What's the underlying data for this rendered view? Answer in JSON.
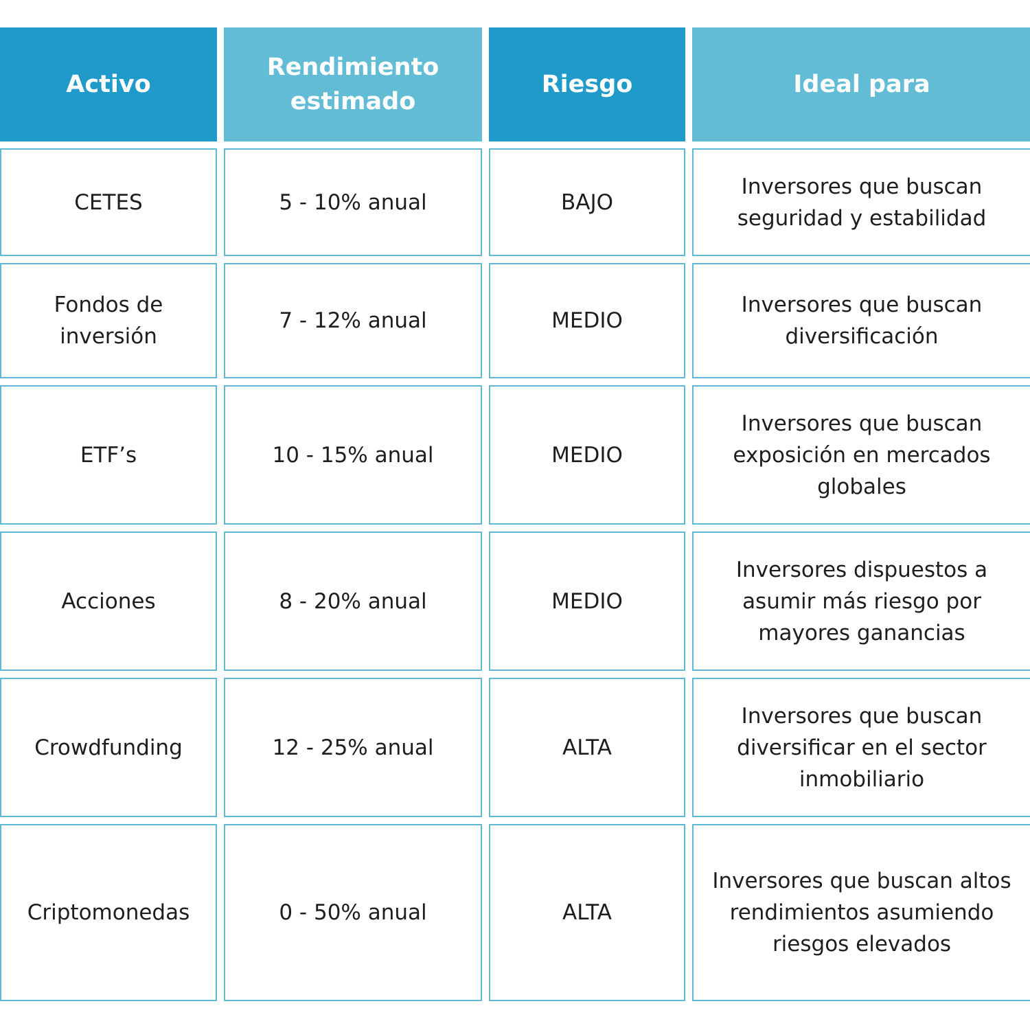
{
  "headers": [
    "Activo",
    "Rendimiento estimado",
    "Riesgo",
    "Ideal para"
  ],
  "rows": [
    [
      "CETES",
      "5 - 10% anual",
      "BAJO",
      "Inversores que buscan seguridad y estabilidad"
    ],
    [
      "Fondos de inversión",
      "7 - 12% anual",
      "MEDIO",
      "Inversores que buscan diversificación"
    ],
    [
      "ETF’s",
      "10 - 15% anual",
      "MEDIO",
      "Inversores que buscan exposición en mercados globales"
    ],
    [
      "Acciones",
      "8 - 20% anual",
      "MEDIO",
      "Inversores dispuestos a asumir más riesgo por mayores ganancias"
    ],
    [
      "Crowdfunding",
      "12 - 25% anual",
      "ALTA",
      "Inversores que buscan diversificar en el sector inmobiliario"
    ],
    [
      "Criptomonedas",
      "0 - 50% anual",
      "ALTA",
      "Inversores que buscan altos rendimientos asumiendo riesgos elevados"
    ]
  ],
  "colors": {
    "header_dark": "#1f9ac9",
    "header_light": "#62bcd6",
    "border": "#5fb8d4",
    "text": "#1e1e1e"
  }
}
